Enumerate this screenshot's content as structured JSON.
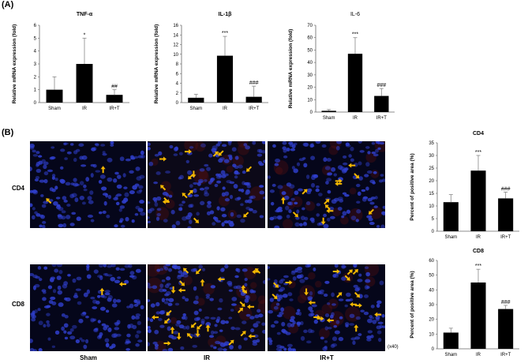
{
  "panels": {
    "a": "(A)",
    "b": "(B)"
  },
  "magnification": "(x40)",
  "micrographs": {
    "columns": [
      "Sham",
      "IR",
      "IR+T"
    ],
    "rows": [
      "CD4",
      "CD8"
    ],
    "arrow_color": "#f5b800",
    "nuclei_color": "#3040d0"
  },
  "chart_data": [
    {
      "type": "bar",
      "title": "TNF-α",
      "ylabel": "Relative mRNA expression (fold)",
      "categories": [
        "Sham",
        "IR",
        "IR+T"
      ],
      "values": [
        1.0,
        3.0,
        0.6
      ],
      "errors": [
        1.0,
        2.0,
        0.4
      ],
      "significance": [
        "",
        "*",
        "##"
      ],
      "ylim": [
        0,
        6
      ],
      "yticks": [
        0,
        1,
        2,
        3,
        4,
        5,
        6
      ],
      "title_bold": true
    },
    {
      "type": "bar",
      "title": "IL-1β",
      "ylabel": "Relative mRNA expression (fold)",
      "categories": [
        "Sham",
        "IR",
        "IR+T"
      ],
      "values": [
        1.0,
        9.7,
        1.2
      ],
      "errors": [
        0.7,
        4.0,
        2.2
      ],
      "significance": [
        "",
        "***",
        "###"
      ],
      "ylim": [
        0,
        16
      ],
      "yticks": [
        0,
        2,
        4,
        6,
        8,
        10,
        12,
        14,
        16
      ],
      "title_bold": true
    },
    {
      "type": "bar",
      "title": "IL-6",
      "ylabel": "Relative mRNA expression (fold)",
      "categories": [
        "Sham",
        "IR",
        "IR+T"
      ],
      "values": [
        1.0,
        47.0,
        13.0
      ],
      "errors": [
        1.0,
        13.0,
        6.0
      ],
      "significance": [
        "",
        "***",
        "###"
      ],
      "ylim": [
        0,
        70
      ],
      "yticks": [
        0,
        10,
        20,
        30,
        40,
        50,
        60,
        70
      ],
      "title_bold": false
    },
    {
      "type": "bar",
      "title": "CD4",
      "ylabel": "Percent of positive area (%)",
      "categories": [
        "Sham",
        "IR",
        "IR+T"
      ],
      "values": [
        11.5,
        24.0,
        13.0
      ],
      "errors": [
        3.0,
        6.0,
        2.5
      ],
      "significance": [
        "",
        "***",
        "###"
      ],
      "ylim": [
        0,
        35
      ],
      "yticks": [
        0,
        5,
        10,
        15,
        20,
        25,
        30,
        35
      ],
      "title_bold": true
    },
    {
      "type": "bar",
      "title": "CD8",
      "ylabel": "Percent of positive area (%)",
      "categories": [
        "Sham",
        "IR",
        "IR+T"
      ],
      "values": [
        11.0,
        45.0,
        27.0
      ],
      "errors": [
        3.0,
        9.0,
        2.5
      ],
      "significance": [
        "",
        "***",
        "###"
      ],
      "ylim": [
        0,
        60
      ],
      "yticks": [
        0,
        10,
        20,
        30,
        40,
        50,
        60
      ],
      "title_bold": true
    }
  ]
}
